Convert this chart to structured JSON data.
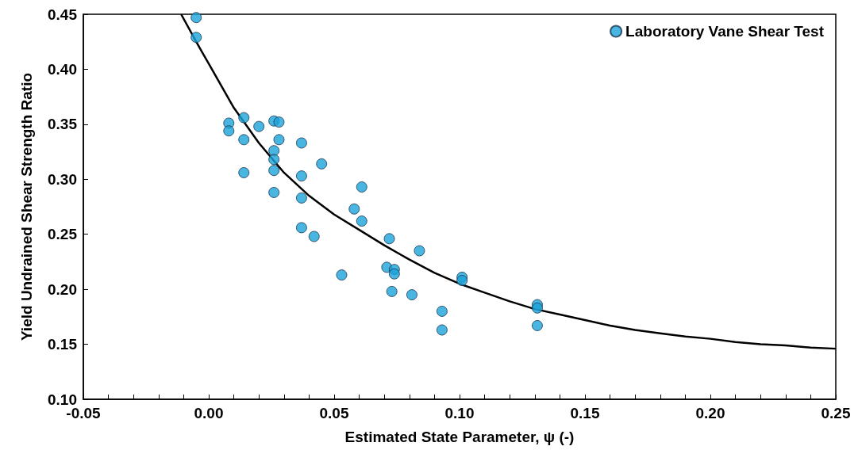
{
  "chart_data": {
    "type": "scatter",
    "xlabel": "Estimated State Parameter, ψ (-)",
    "ylabel": "Yield Undrained Shear Strength Ratio",
    "xlim": [
      -0.05,
      0.25
    ],
    "ylim": [
      0.1,
      0.45
    ],
    "xticks": [
      -0.05,
      {
        "value": -0.04,
        "label": null
      },
      {
        "value": -0.03,
        "label": null
      },
      {
        "value": -0.02,
        "label": null
      },
      {
        "value": -0.01,
        "label": null
      },
      {
        "value": 0,
        "label": "0.00"
      },
      {
        "value": 0.01,
        "label": null
      },
      {
        "value": 0.02,
        "label": null
      },
      {
        "value": 0.03,
        "label": null
      },
      {
        "value": 0.04,
        "label": null
      },
      0.05,
      {
        "value": 0.06,
        "label": null
      },
      {
        "value": 0.07,
        "label": null
      },
      {
        "value": 0.08,
        "label": null
      },
      {
        "value": 0.09,
        "label": null
      },
      {
        "value": 0.1,
        "label": "0.10"
      },
      {
        "value": 0.11,
        "label": null
      },
      {
        "value": 0.12,
        "label": null
      },
      {
        "value": 0.13,
        "label": null
      },
      {
        "value": 0.14,
        "label": null
      },
      0.15,
      {
        "value": 0.16,
        "label": null
      },
      {
        "value": 0.17,
        "label": null
      },
      {
        "value": 0.18,
        "label": null
      },
      {
        "value": 0.19,
        "label": null
      },
      {
        "value": 0.2,
        "label": "0.20"
      },
      {
        "value": 0.21,
        "label": null
      },
      {
        "value": 0.22,
        "label": null
      },
      {
        "value": 0.23,
        "label": null
      },
      {
        "value": 0.24,
        "label": null
      },
      0.25
    ],
    "yticks": [
      {
        "value": 0.1,
        "label": "0.10"
      },
      0.15,
      {
        "value": 0.2,
        "label": "0.20"
      },
      0.25,
      {
        "value": 0.3,
        "label": "0.30"
      },
      0.35,
      {
        "value": 0.4,
        "label": "0.40"
      },
      0.45
    ],
    "grid": false,
    "legend": "top right",
    "marker": "circle",
    "series": [
      {
        "name": "Laboratory Vane Shear Test",
        "color": "#1ca3d9",
        "x": [
          -0.005,
          -0.005,
          0.008,
          0.008,
          0.014,
          0.014,
          0.02,
          0.026,
          0.028,
          0.028,
          0.026,
          0.026,
          0.026,
          0.014,
          0.037,
          0.037,
          0.045,
          0.026,
          0.037,
          0.061,
          0.058,
          0.061,
          0.037,
          0.042,
          0.072,
          0.084,
          0.053,
          0.071,
          0.074,
          0.074,
          0.073,
          0.081,
          0.101,
          0.101,
          0.093,
          0.093,
          0.131,
          0.131,
          0.131
        ],
        "values": [
          0.447,
          0.429,
          0.351,
          0.344,
          0.356,
          0.336,
          0.348,
          0.353,
          0.352,
          0.336,
          0.326,
          0.318,
          0.308,
          0.306,
          0.333,
          0.303,
          0.314,
          0.288,
          0.283,
          0.293,
          0.273,
          0.262,
          0.256,
          0.248,
          0.246,
          0.235,
          0.213,
          0.22,
          0.218,
          0.214,
          0.198,
          0.195,
          0.211,
          0.208,
          0.18,
          0.163,
          0.186,
          0.183,
          0.167
        ]
      },
      {
        "type": "line",
        "color": "#000000",
        "marker": "none",
        "line_style": "solid",
        "x": [
          -0.011,
          -0.005,
          0,
          0.01,
          0.02,
          0.03,
          0.04,
          0.05,
          0.06,
          0.07,
          0.08,
          0.09,
          0.1,
          0.11,
          0.12,
          0.13,
          0.14,
          0.15,
          0.16,
          0.17,
          0.18,
          0.19,
          0.2,
          0.21,
          0.22,
          0.23,
          0.24,
          0.25
        ],
        "values": [
          0.45,
          0.425,
          0.405,
          0.365,
          0.333,
          0.306,
          0.285,
          0.268,
          0.254,
          0.24,
          0.227,
          0.215,
          0.205,
          0.197,
          0.189,
          0.182,
          0.177,
          0.172,
          0.167,
          0.163,
          0.16,
          0.157,
          0.155,
          0.152,
          0.15,
          0.149,
          0.147,
          0.146
        ]
      }
    ]
  }
}
